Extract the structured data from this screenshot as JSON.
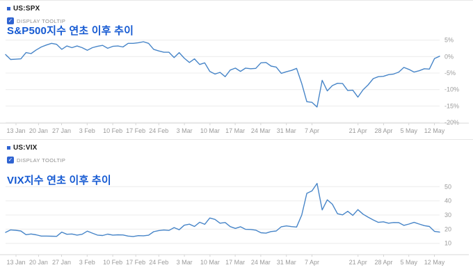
{
  "accent_color": "#2f63d1",
  "icons": {
    "check": "✓"
  },
  "chart_data": [
    {
      "type": "line",
      "symbol": "US:SPX",
      "tooltip_checkbox_label": "DISPLAY TOOLTIP",
      "tooltip_checked": true,
      "title": "S&P500지수 연초 이후 추이",
      "title_color": "#1459d2",
      "line_color": "#4785c8",
      "x_tick_labels": [
        "13 Jan",
        "20 Jan",
        "27 Jan",
        "3 Feb",
        "10 Feb",
        "17 Feb",
        "24 Feb",
        "3 Mar",
        "10 Mar",
        "17 Mar",
        "24 Mar",
        "31 Mar",
        "7 Apr",
        "21 Apr",
        "28 Apr",
        "5 May",
        "12 May"
      ],
      "x_tick_pos": [
        0.024,
        0.076,
        0.129,
        0.188,
        0.247,
        0.3,
        0.353,
        0.412,
        0.471,
        0.529,
        0.588,
        0.647,
        0.706,
        0.812,
        0.871,
        0.929,
        0.988
      ],
      "y_ticks": [
        5,
        0,
        -5,
        -10,
        -15,
        -20
      ],
      "y_suffix": "%",
      "ylim": [
        -20.2,
        8.5
      ],
      "grid": true,
      "legend": "none",
      "values": [
        0.6,
        -0.9,
        -0.8,
        -0.7,
        1.2,
        0.9,
        2,
        2.9,
        3.5,
        4,
        3.7,
        2.2,
        3.2,
        2.7,
        3.2,
        2.7,
        1.9,
        2.7,
        3.1,
        3.4,
        2.5,
        3.1,
        3.2,
        2.9,
        4,
        4,
        4.2,
        4.5,
        4,
        2.2,
        1.7,
        1.3,
        1.3,
        -0.3,
        1.2,
        -0.5,
        -1.8,
        -0.7,
        -2.4,
        -1.9,
        -4.5,
        -5.3,
        -4.8,
        -6.1,
        -4.1,
        -3.5,
        -4.5,
        -3.5,
        -3.7,
        -3.6,
        -1.9,
        -1.8,
        -2.9,
        -3.2,
        -5.1,
        -4.6,
        -4.2,
        -3.6,
        -8.2,
        -13.7,
        -13.9,
        -15.3,
        -7.2,
        -10.4,
        -8.8,
        -8.1,
        -8.2,
        -10.3,
        -10.2,
        -12.3,
        -10.1,
        -8.6,
        -6.7,
        -6.1,
        -6,
        -5.5,
        -5.3,
        -4.7,
        -3.3,
        -3.9,
        -4.7,
        -4.3,
        -3.7,
        -3.8,
        -0.6,
        0.1
      ]
    },
    {
      "type": "line",
      "symbol": "US:VIX",
      "tooltip_checkbox_label": "DISPLAY TOOLTIP",
      "tooltip_checked": true,
      "title": "VIX지수 연초 이후 추이",
      "title_color": "#1459d2",
      "line_color": "#4785c8",
      "x_tick_labels": [
        "13 Jan",
        "20 Jan",
        "27 Jan",
        "3 Feb",
        "10 Feb",
        "17 Feb",
        "24 Feb",
        "3 Mar",
        "10 Mar",
        "17 Mar",
        "24 Mar",
        "31 Mar",
        "7 Apr",
        "21 Apr",
        "28 Apr",
        "5 May",
        "12 May"
      ],
      "x_tick_pos": [
        0.024,
        0.076,
        0.129,
        0.188,
        0.247,
        0.3,
        0.353,
        0.412,
        0.471,
        0.529,
        0.588,
        0.647,
        0.706,
        0.812,
        0.871,
        0.929,
        0.988
      ],
      "y_ticks": [
        50,
        40,
        30,
        20,
        10
      ],
      "y_suffix": "",
      "ylim": [
        2,
        58.5
      ],
      "grid": true,
      "legend": "none",
      "values": [
        17.7,
        19.5,
        19.2,
        18.7,
        16.1,
        16.6,
        16,
        15.1,
        15.1,
        15,
        14.9,
        17.9,
        16.4,
        16.6,
        15.8,
        16.4,
        18.6,
        17.2,
        15.8,
        15.5,
        16.5,
        15.8,
        16,
        15.9,
        15.1,
        14.8,
        15.4,
        15.3,
        15.7,
        18.2,
        19,
        19.4,
        19.1,
        21.1,
        19.6,
        22.8,
        23.5,
        21.9,
        24.9,
        23.4,
        27.9,
        26.9,
        24.2,
        24.7,
        21.8,
        20.5,
        21.7,
        19.9,
        19.8,
        19.3,
        17.5,
        17.2,
        18.3,
        18.7,
        21.7,
        22.3,
        21.8,
        21.5,
        30,
        45.3,
        47,
        52.3,
        33.6,
        40.7,
        37.6,
        30.9,
        30.1,
        32.6,
        29.7,
        33.8,
        30.6,
        28.5,
        26.5,
        24.8,
        25.2,
        24.2,
        24.7,
        24.6,
        22.7,
        23.6,
        24.8,
        23.6,
        22.5,
        21.9,
        18.4,
        17.9
      ]
    }
  ]
}
